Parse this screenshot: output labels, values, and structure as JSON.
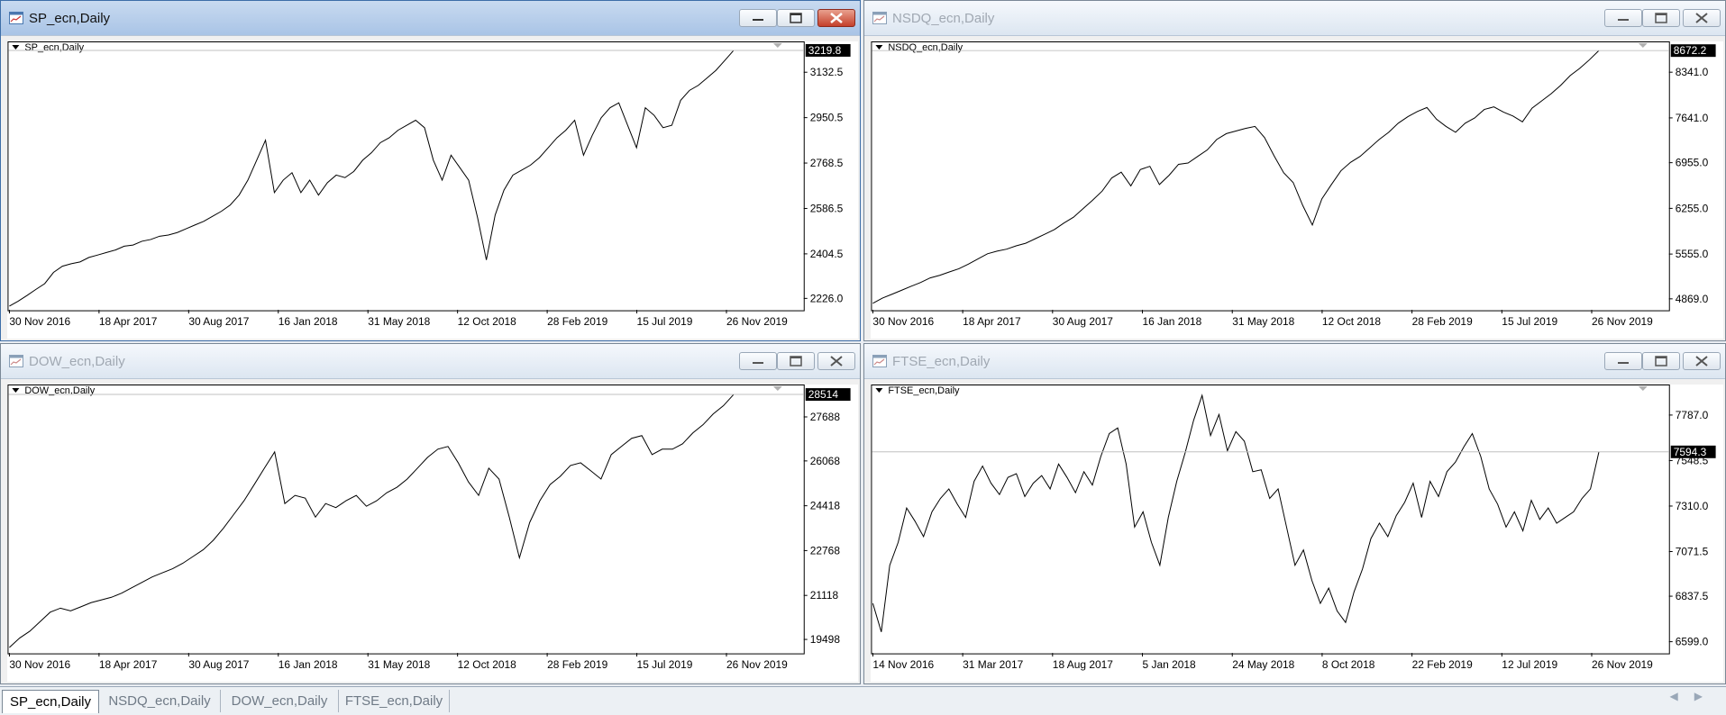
{
  "windows": [
    {
      "title": "SP_ecn,Daily",
      "chart_label": "SP_ecn,Daily",
      "active": true,
      "current_price": "3219.8",
      "price_ticks": [
        "3132.5",
        "2950.5",
        "2768.5",
        "2586.5",
        "2404.5",
        "2226.0"
      ],
      "date_ticks": [
        "30 Nov 2016",
        "18 Apr 2017",
        "30 Aug 2017",
        "16 Jan 2018",
        "31 May 2018",
        "12 Oct 2018",
        "28 Feb 2019",
        "15 Jul 2019",
        "26 Nov 2019"
      ]
    },
    {
      "title": "NSDQ_ecn,Daily",
      "chart_label": "NSDQ_ecn,Daily",
      "active": false,
      "current_price": "8672.2",
      "price_ticks": [
        "8341.0",
        "7641.0",
        "6955.0",
        "6255.0",
        "5555.0",
        "4869.0"
      ],
      "date_ticks": [
        "30 Nov 2016",
        "18 Apr 2017",
        "30 Aug 2017",
        "16 Jan 2018",
        "31 May 2018",
        "12 Oct 2018",
        "28 Feb 2019",
        "15 Jul 2019",
        "26 Nov 2019"
      ]
    },
    {
      "title": "DOW_ecn,Daily",
      "chart_label": "DOW_ecn,Daily",
      "active": false,
      "current_price": "28514",
      "price_ticks": [
        "27688",
        "26068",
        "24418",
        "22768",
        "21118",
        "19498"
      ],
      "date_ticks": [
        "30 Nov 2016",
        "18 Apr 2017",
        "30 Aug 2017",
        "16 Jan 2018",
        "31 May 2018",
        "12 Oct 2018",
        "28 Feb 2019",
        "15 Jul 2019",
        "26 Nov 2019"
      ]
    },
    {
      "title": "FTSE_ecn,Daily",
      "chart_label": "FTSE_ecn,Daily",
      "active": false,
      "current_price": "7594.3",
      "price_ticks": [
        "7787.0",
        "7548.5",
        "7310.0",
        "7071.5",
        "6837.5",
        "6599.0"
      ],
      "date_ticks": [
        "14 Nov 2016",
        "31 Mar 2017",
        "18 Aug 2017",
        "5 Jan 2018",
        "24 May 2018",
        "8 Oct 2018",
        "22 Feb 2019",
        "12 Jul 2019",
        "26 Nov 2019"
      ]
    }
  ],
  "tabs": [
    "SP_ecn,Daily",
    "NSDQ_ecn,Daily",
    "DOW_ecn,Daily",
    "FTSE_ecn,Daily"
  ],
  "active_tab": 0,
  "chart_data": [
    {
      "type": "line",
      "series": [
        {
          "name": "SP_ecn,Daily",
          "values": [
            2195,
            2215,
            2238,
            2262,
            2285,
            2330,
            2355,
            2365,
            2372,
            2390,
            2400,
            2410,
            2420,
            2435,
            2440,
            2455,
            2462,
            2475,
            2480,
            2490,
            2505,
            2520,
            2535,
            2555,
            2575,
            2600,
            2640,
            2700,
            2780,
            2860,
            2650,
            2700,
            2730,
            2650,
            2700,
            2640,
            2690,
            2720,
            2710,
            2735,
            2780,
            2810,
            2850,
            2870,
            2900,
            2920,
            2940,
            2910,
            2780,
            2700,
            2800,
            2750,
            2700,
            2550,
            2380,
            2560,
            2660,
            2720,
            2740,
            2760,
            2790,
            2830,
            2870,
            2900,
            2940,
            2800,
            2880,
            2950,
            2990,
            3010,
            2920,
            2830,
            2990,
            2960,
            2910,
            2920,
            3020,
            3060,
            3080,
            3110,
            3140,
            3180,
            3220
          ]
        }
      ],
      "x_ticks": [
        "30 Nov 2016",
        "18 Apr 2017",
        "30 Aug 2017",
        "16 Jan 2018",
        "31 May 2018",
        "12 Oct 2018",
        "28 Feb 2019",
        "15 Jul 2019",
        "26 Nov 2019"
      ],
      "y_ticks": [
        "3132.5",
        "2950.5",
        "2768.5",
        "2586.5",
        "2404.5",
        "2226.0"
      ],
      "ylim": [
        2180,
        3220
      ]
    },
    {
      "type": "line",
      "series": [
        {
          "name": "NSDQ_ecn,Daily",
          "values": [
            4800,
            4880,
            4940,
            5000,
            5060,
            5120,
            5190,
            5230,
            5280,
            5330,
            5400,
            5480,
            5560,
            5600,
            5630,
            5680,
            5720,
            5790,
            5860,
            5930,
            6030,
            6120,
            6250,
            6380,
            6520,
            6720,
            6810,
            6600,
            6850,
            6900,
            6620,
            6760,
            6930,
            6950,
            7050,
            7150,
            7310,
            7400,
            7440,
            7480,
            7510,
            7340,
            7060,
            6800,
            6650,
            6300,
            6000,
            6400,
            6620,
            6830,
            6960,
            7050,
            7180,
            7310,
            7420,
            7560,
            7660,
            7740,
            7800,
            7620,
            7510,
            7420,
            7560,
            7640,
            7770,
            7810,
            7730,
            7670,
            7580,
            7790,
            7900,
            8010,
            8140,
            8290,
            8400,
            8530,
            8672
          ]
        }
      ],
      "x_ticks": [
        "30 Nov 2016",
        "18 Apr 2017",
        "30 Aug 2017",
        "16 Jan 2018",
        "31 May 2018",
        "12 Oct 2018",
        "28 Feb 2019",
        "15 Jul 2019",
        "26 Nov 2019"
      ],
      "y_ticks": [
        "8341.0",
        "7641.0",
        "6955.0",
        "6255.0",
        "5555.0",
        "4869.0"
      ],
      "ylim": [
        4700,
        8675
      ]
    },
    {
      "type": "line",
      "series": [
        {
          "name": "DOW_ecn,Daily",
          "values": [
            19200,
            19550,
            19800,
            20150,
            20500,
            20650,
            20550,
            20700,
            20850,
            20950,
            21050,
            21200,
            21400,
            21600,
            21800,
            21950,
            22100,
            22300,
            22550,
            22800,
            23150,
            23600,
            24100,
            24600,
            25200,
            25800,
            26400,
            24500,
            24800,
            24700,
            24000,
            24500,
            24350,
            24600,
            24800,
            24400,
            24600,
            24900,
            25100,
            25400,
            25800,
            26200,
            26500,
            26600,
            26000,
            25300,
            24800,
            25800,
            25400,
            24000,
            22500,
            23800,
            24600,
            25200,
            25500,
            25900,
            26000,
            25700,
            25400,
            26300,
            26600,
            26900,
            27000,
            26300,
            26500,
            26500,
            26700,
            27100,
            27400,
            27800,
            28100,
            28514
          ]
        }
      ],
      "x_ticks": [
        "30 Nov 2016",
        "18 Apr 2017",
        "30 Aug 2017",
        "16 Jan 2018",
        "31 May 2018",
        "12 Oct 2018",
        "28 Feb 2019",
        "15 Jul 2019",
        "26 Nov 2019"
      ],
      "y_ticks": [
        "27688",
        "26068",
        "24418",
        "22768",
        "21118",
        "19498"
      ],
      "ylim": [
        19000,
        28550
      ]
    },
    {
      "type": "line",
      "series": [
        {
          "name": "FTSE_ecn,Daily",
          "values": [
            6800,
            6650,
            7000,
            7120,
            7300,
            7230,
            7150,
            7280,
            7350,
            7400,
            7320,
            7250,
            7440,
            7520,
            7430,
            7370,
            7460,
            7480,
            7360,
            7430,
            7470,
            7400,
            7530,
            7460,
            7380,
            7490,
            7420,
            7570,
            7690,
            7720,
            7530,
            7200,
            7280,
            7120,
            7000,
            7250,
            7440,
            7590,
            7760,
            7890,
            7680,
            7790,
            7600,
            7700,
            7650,
            7490,
            7500,
            7350,
            7400,
            7200,
            7000,
            7080,
            6920,
            6800,
            6880,
            6760,
            6700,
            6860,
            6980,
            7140,
            7220,
            7150,
            7260,
            7330,
            7430,
            7250,
            7440,
            7360,
            7490,
            7540,
            7620,
            7690,
            7570,
            7400,
            7320,
            7200,
            7280,
            7180,
            7340,
            7240,
            7300,
            7220,
            7250,
            7280,
            7350,
            7400,
            7594
          ]
        }
      ],
      "x_ticks": [
        "14 Nov 2016",
        "31 Mar 2017",
        "18 Aug 2017",
        "5 Jan 2018",
        "24 May 2018",
        "8 Oct 2018",
        "22 Feb 2019",
        "12 Jul 2019",
        "26 Nov 2019"
      ],
      "y_ticks": [
        "7787.0",
        "7548.5",
        "7310.0",
        "7071.5",
        "6837.5",
        "6599.0"
      ],
      "ylim": [
        6540,
        7900
      ]
    }
  ]
}
